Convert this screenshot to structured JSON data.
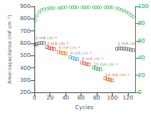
{
  "chart_data": {
    "type": "scatter",
    "xlabel": "Cycles",
    "ylabel": "Areal capacitance (mF cm⁻²)",
    "xlim": [
      -2,
      130
    ],
    "xticks": [
      0,
      20,
      40,
      60,
      80,
      100,
      120
    ],
    "ylim": [
      200,
      900
    ],
    "yticks": [
      200,
      300,
      400,
      500,
      600,
      700,
      800,
      900
    ],
    "y2lim": [
      0,
      100
    ],
    "y2ticks": [
      0,
      20,
      40,
      60,
      80,
      100
    ],
    "grid": false,
    "series": [
      {
        "name": "1 mA cm⁻²",
        "color": "#555555",
        "marker": "square",
        "x": [
          1,
          3,
          6,
          9,
          12
        ],
        "values": [
          588,
          595,
          600,
          602,
          603
        ]
      },
      {
        "name": "2 mA cm⁻²",
        "color": "#cc2222",
        "marker": "square",
        "x": [
          16,
          19,
          22,
          25
        ],
        "values": [
          568,
          562,
          558,
          555
        ]
      },
      {
        "name": "4 mA cm⁻²",
        "color": "#dd6600",
        "marker": "square",
        "x": [
          31,
          34,
          37,
          40
        ],
        "values": [
          530,
          524,
          520,
          517
        ]
      },
      {
        "name": "6 mA cm⁻²",
        "color": "#3399cc",
        "marker": "square",
        "x": [
          46,
          49,
          52,
          55
        ],
        "values": [
          488,
          480,
          474,
          470
        ]
      },
      {
        "name": "8 mA cm⁻²",
        "color": "#ee3333",
        "marker": "square",
        "x": [
          61,
          64,
          67,
          70
        ],
        "values": [
          443,
          436,
          431,
          428
        ]
      },
      {
        "name": "10 mA cm⁻²",
        "color": "#229944",
        "marker": "square",
        "x": [
          76,
          79,
          82,
          85
        ],
        "values": [
          402,
          396,
          391,
          388
        ]
      },
      {
        "name": "14 mA cm⁻²",
        "color": "#cc4400",
        "marker": "square",
        "x": [
          91,
          94,
          97,
          100
        ],
        "values": [
          315,
          308,
          303,
          299
        ]
      },
      {
        "name": "1 mA cm⁻²",
        "color": "#555555",
        "marker": "square",
        "x": [
          106,
          109,
          112,
          115,
          118,
          121,
          124,
          127
        ],
        "values": [
          555,
          560,
          558,
          556,
          554,
          551,
          548,
          544
        ]
      },
      {
        "color": "#22aa44",
        "marker": "circle",
        "axis": "y2",
        "x": [
          1,
          3,
          6,
          9,
          12,
          16,
          19,
          22,
          25,
          31,
          34,
          37,
          40,
          46,
          49,
          52,
          55,
          61,
          64,
          67,
          70,
          76,
          79,
          82,
          85,
          91,
          94,
          97,
          100,
          106,
          109,
          112,
          115,
          118,
          121,
          124,
          127
        ],
        "values": [
          84,
          89,
          93,
          96,
          97,
          97,
          98,
          98,
          98,
          98,
          98,
          99,
          99,
          99,
          99,
          99,
          99,
          99,
          99,
          99,
          99,
          99,
          99,
          99,
          99,
          99,
          99,
          99,
          99,
          98,
          97,
          96,
          95,
          94,
          92,
          90,
          88
        ]
      }
    ],
    "annotations": [
      {
        "text": "1 mA cm⁻²",
        "x": 1,
        "y": 630,
        "color": "#555555"
      },
      {
        "text": "2 mA cm⁻²",
        "x": 16,
        "y": 582,
        "color": "#cc2222"
      },
      {
        "text": "4 mA cm⁻²",
        "x": 31,
        "y": 550,
        "color": "#dd6600"
      },
      {
        "text": "6 mA cm⁻²",
        "x": 46,
        "y": 503,
        "color": "#3399cc"
      },
      {
        "text": "8 mA cm⁻²",
        "x": 61,
        "y": 457,
        "color": "#ee3333"
      },
      {
        "text": "10 mA cm⁻²",
        "x": 76,
        "y": 413,
        "color": "#229944"
      },
      {
        "text": "14 mA cm⁻²",
        "x": 91,
        "y": 325,
        "color": "#cc4400"
      },
      {
        "text": "1 mA cm⁻²",
        "x": 107,
        "y": 580,
        "color": "#555555"
      }
    ]
  }
}
